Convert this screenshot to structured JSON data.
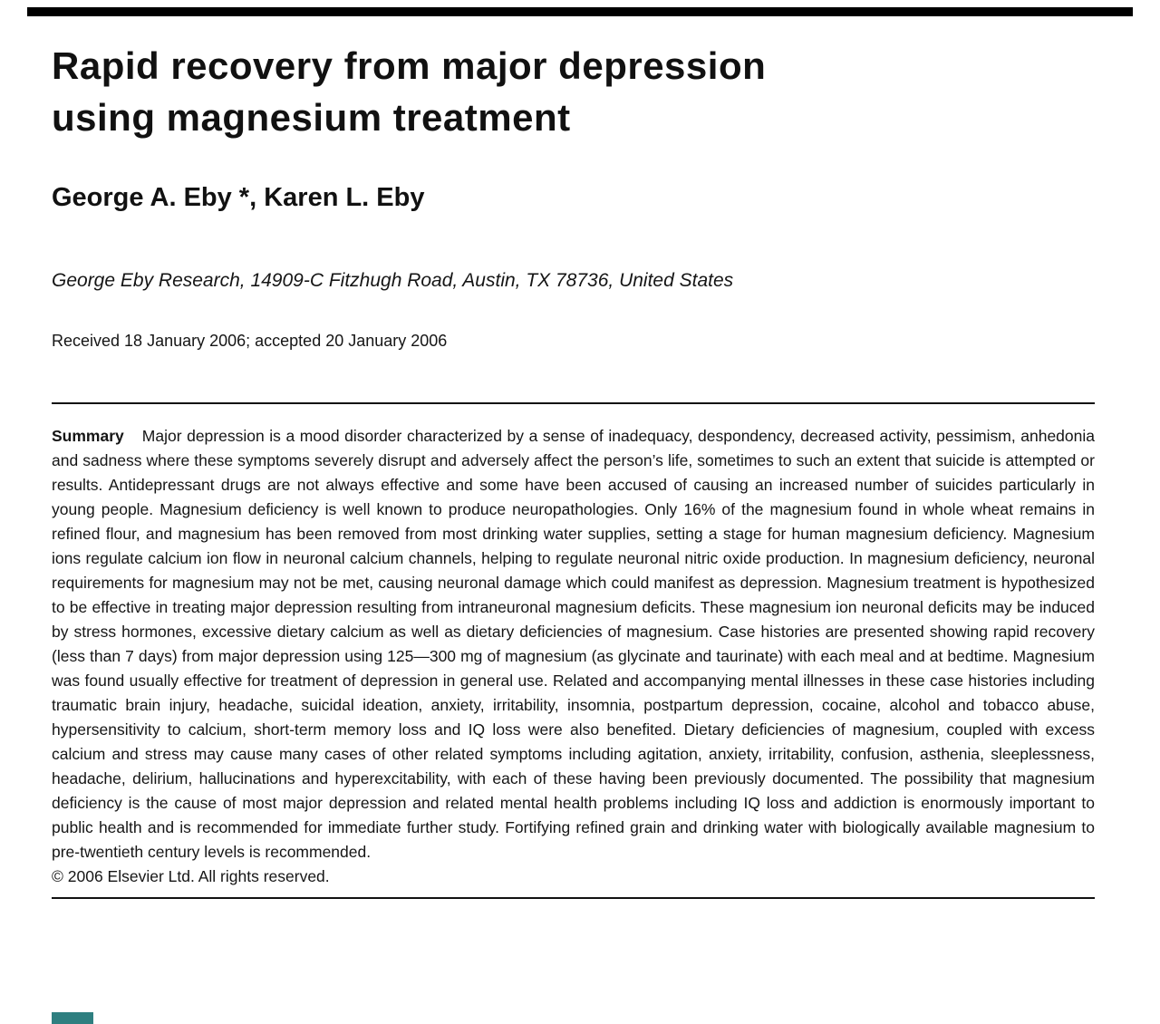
{
  "paper": {
    "title_line1": "Rapid recovery from major depression",
    "title_line2": "using magnesium treatment",
    "authors": "George A. Eby *, Karen L. Eby",
    "affiliation": "George Eby Research, 14909-C Fitzhugh Road, Austin, TX 78736, United States",
    "received": "Received 18 January 2006; accepted 20 January 2006",
    "summary_label": "Summary",
    "summary_text": "Major depression is a mood disorder characterized by a sense of inadequacy, despondency, decreased activity, pessimism, anhedonia and sadness where these symptoms severely disrupt and adversely affect the person’s life, sometimes to such an extent that suicide is attempted or results. Antidepressant drugs are not always effective and some have been accused of causing an increased number of suicides particularly in young people. Magnesium deficiency is well known to produce neuropathologies. Only 16% of the magnesium found in whole wheat remains in refined flour, and magnesium has been removed from most drinking water supplies, setting a stage for human magnesium deficiency. Magnesium ions regulate calcium ion flow in neuronal calcium channels, helping to regulate neuronal nitric oxide production. In magnesium deficiency, neuronal requirements for magnesium may not be met, causing neuronal damage which could manifest as depression. Magnesium treatment is hypothesized to be effective in treating major depression resulting from intraneuronal magnesium deficits. These magnesium ion neuronal deficits may be induced by stress hormones, excessive dietary calcium as well as dietary deficiencies of magnesium. Case histories are presented showing rapid recovery (less than 7 days) from major depression using 125—300 mg of magnesium (as glycinate and taurinate) with each meal and at bedtime. Magnesium was found usually effective for treatment of depression in general use. Related and accompanying mental illnesses in these case histories including traumatic brain injury, headache, suicidal ideation, anxiety, irritability, insomnia, postpartum depression, cocaine, alcohol and tobacco abuse, hypersensitivity to calcium, short-term memory loss and IQ loss were also benefited. Dietary deficiencies of magnesium, coupled with excess calcium and stress may cause many cases of other related symptoms including agitation, anxiety, irritability, confusion, asthenia, sleeplessness, headache, delirium, hallucinations and hyperexcitability, with each of these having been previously documented. The possibility that magnesium deficiency is the cause of most major depression and related mental health problems including IQ loss and addiction is enormously important to public health and is recommended for immediate further study. Fortifying refined grain and drinking water with biologically available magnesium to pre-twentieth century levels is recommended.",
    "copyright": "© 2006 Elsevier Ltd. All rights reserved."
  },
  "colors": {
    "text": "#151515",
    "rule": "#111111",
    "accent": "#2e7f80"
  }
}
